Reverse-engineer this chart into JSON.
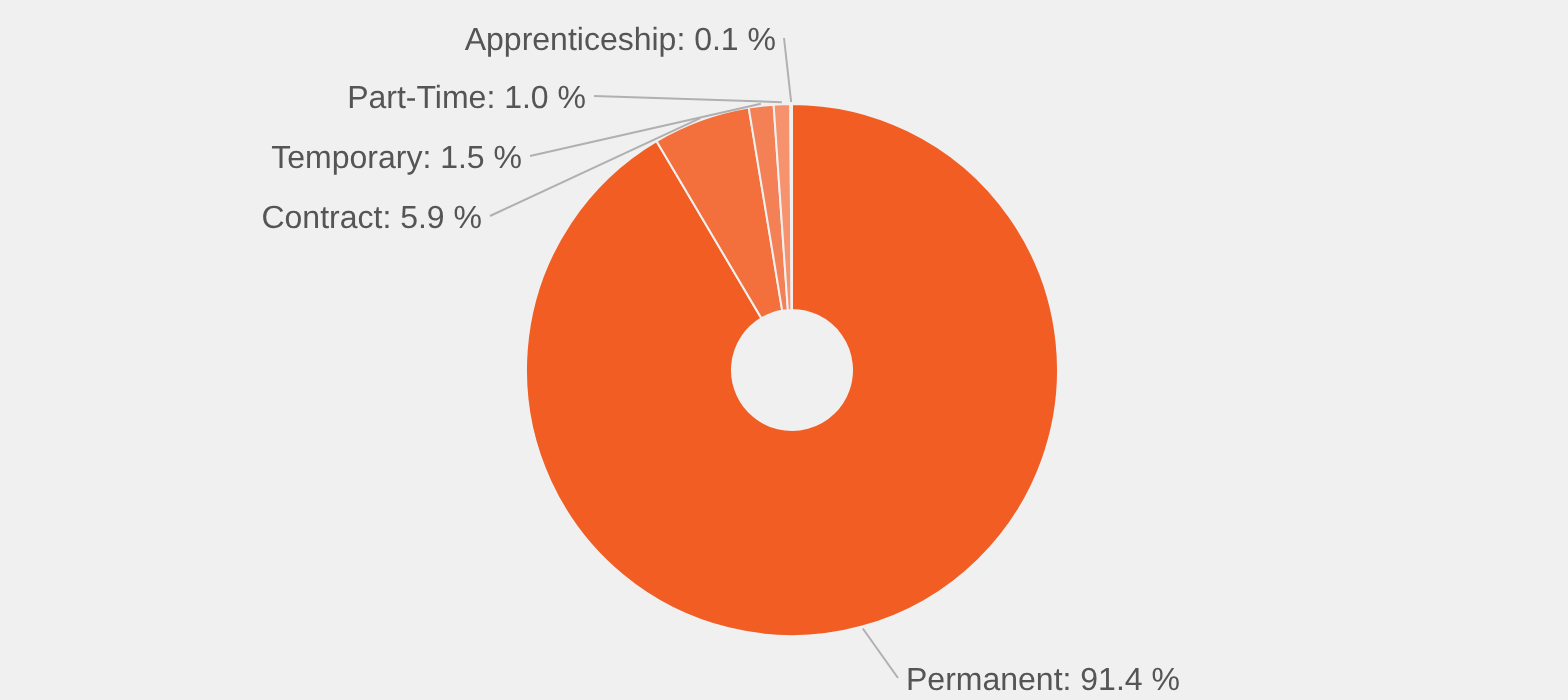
{
  "chart_data": {
    "type": "donut",
    "categories": [
      "Permanent",
      "Contract",
      "Temporary",
      "Part-Time",
      "Apprenticeship"
    ],
    "values": [
      91.4,
      5.9,
      1.5,
      1.0,
      0.1
    ],
    "colors": [
      "#f15d22",
      "#f36f3b",
      "#f48155",
      "#f6936e",
      "#f8a587"
    ],
    "value_labels": [
      "91.4 %",
      "5.9 %",
      "1.5 %",
      "1.0 %",
      "0.1 %"
    ],
    "legend": false
  }
}
